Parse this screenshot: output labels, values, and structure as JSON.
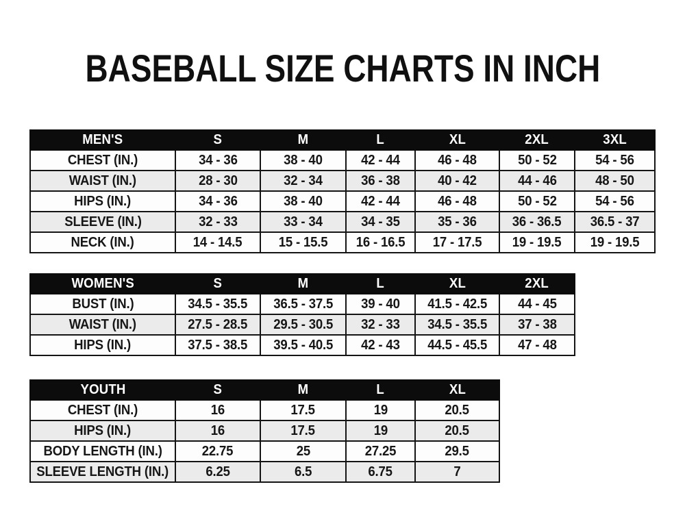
{
  "title": "BASEBALL SIZE CHARTS IN INCH",
  "colors": {
    "background": "#ffffff",
    "header_bg": "#0c0c0c",
    "header_text": "#ffffff",
    "row_bg": "#fdfdfd",
    "row_alt_bg": "#ebebeb",
    "border": "#141414",
    "text": "#161616"
  },
  "chart_data": [
    {
      "type": "table",
      "title": "MEN'S",
      "columns": [
        "MEN'S",
        "S",
        "M",
        "L",
        "XL",
        "2XL",
        "3XL"
      ],
      "rows": [
        [
          "CHEST (IN.)",
          "34 - 36",
          "38 - 40",
          "42 - 44",
          "46 - 48",
          "50 - 52",
          "54 - 56"
        ],
        [
          "WAIST (IN.)",
          "28 - 30",
          "32 - 34",
          "36 - 38",
          "40 - 42",
          "44 - 46",
          "48 - 50"
        ],
        [
          "HIPS (IN.)",
          "34 - 36",
          "38 - 40",
          "42 - 44",
          "46 - 48",
          "50 - 52",
          "54 - 56"
        ],
        [
          "SLEEVE (IN.)",
          "32 - 33",
          "33 - 34",
          "34 - 35",
          "35 - 36",
          "36 - 36.5",
          "36.5 - 37"
        ],
        [
          "NECK (IN.)",
          "14 - 14.5",
          "15 - 15.5",
          "16 - 16.5",
          "17 - 17.5",
          "19 - 19.5",
          "19 - 19.5"
        ]
      ]
    },
    {
      "type": "table",
      "title": "WOMEN'S",
      "columns": [
        "WOMEN'S",
        "S",
        "M",
        "L",
        "XL",
        "2XL"
      ],
      "rows": [
        [
          "BUST (IN.)",
          "34.5 - 35.5",
          "36.5 - 37.5",
          "39 - 40",
          "41.5 - 42.5",
          "44 - 45"
        ],
        [
          "WAIST (IN.)",
          "27.5 - 28.5",
          "29.5 - 30.5",
          "32 - 33",
          "34.5 - 35.5",
          "37 - 38"
        ],
        [
          "HIPS (IN.)",
          "37.5 - 38.5",
          "39.5 - 40.5",
          "42 - 43",
          "44.5 - 45.5",
          "47 - 48"
        ]
      ]
    },
    {
      "type": "table",
      "title": "YOUTH",
      "columns": [
        "YOUTH",
        "S",
        "M",
        "L",
        "XL"
      ],
      "rows": [
        [
          "CHEST (IN.)",
          "16",
          "17.5",
          "19",
          "20.5"
        ],
        [
          "HIPS (IN.)",
          "16",
          "17.5",
          "19",
          "20.5"
        ],
        [
          "BODY LENGTH (IN.)",
          "22.75",
          "25",
          "27.25",
          "29.5"
        ],
        [
          "SLEEVE LENGTH (IN.)",
          "6.25",
          "6.5",
          "6.75",
          "7"
        ]
      ]
    }
  ]
}
